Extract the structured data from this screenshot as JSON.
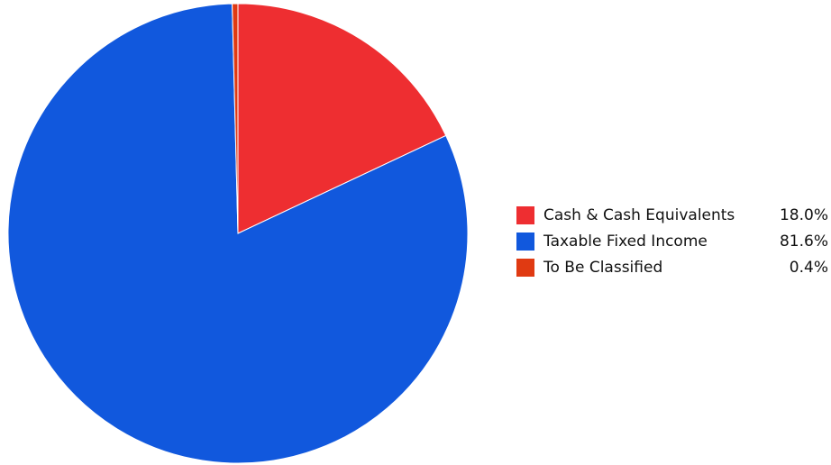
{
  "chart_data": {
    "type": "pie",
    "slices": [
      {
        "label": "Cash & Cash Equivalents",
        "value": 18.0,
        "display": "18.0%",
        "color": "#ee2e31"
      },
      {
        "label": "Taxable Fixed Income",
        "value": 81.6,
        "display": "81.6%",
        "color": "#1158dd"
      },
      {
        "label": "To Be Classified",
        "value": 0.4,
        "display": "0.4%",
        "color": "#e03a12"
      }
    ],
    "legend_position": "right"
  },
  "legend": {
    "items": [
      {
        "label": "Cash & Cash Equivalents",
        "value": "18.0%",
        "color": "#ee2e31"
      },
      {
        "label": "Taxable Fixed Income",
        "value": "81.6%",
        "color": "#1158dd"
      },
      {
        "label": "To Be Classified",
        "value": "0.4%",
        "color": "#e03a12"
      }
    ]
  }
}
